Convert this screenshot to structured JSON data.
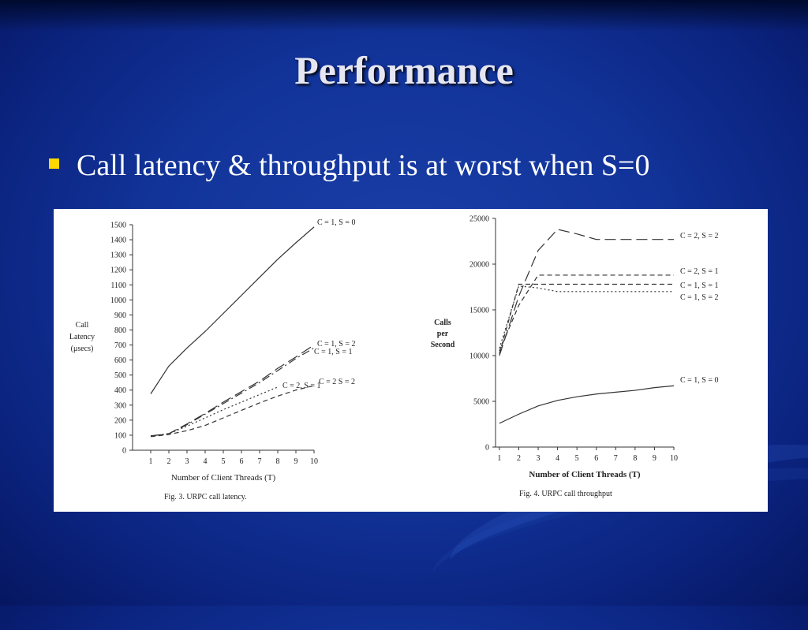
{
  "slide": {
    "title": "Performance",
    "bullet": "Call latency & throughput is at worst when S=0",
    "colors": {
      "background": "#12349a",
      "title": "#e6e6f2",
      "bullet_marker": "#ffd700",
      "text": "#ffffff"
    }
  },
  "chart_data": [
    {
      "type": "line",
      "caption": "Fig. 3.   URPC call latency.",
      "xlabel": "Number of Client Threads (T)",
      "ylabel": [
        "Call",
        "Latency",
        "(μsecs)"
      ],
      "x": [
        1,
        2,
        3,
        4,
        5,
        6,
        7,
        8,
        9,
        10
      ],
      "xticks": [
        "1",
        "2",
        "3",
        "4",
        "5",
        "6",
        "7",
        "8",
        "9",
        "10"
      ],
      "yticks": [
        "0",
        "100",
        "200",
        "300",
        "400",
        "500",
        "600",
        "700",
        "800",
        "900",
        "1000",
        "1100",
        "1200",
        "1300",
        "1400",
        "1500"
      ],
      "xlim": [
        0,
        10
      ],
      "ylim": [
        0,
        1500
      ],
      "grid": false,
      "series": [
        {
          "name": "C = 1, S = 0",
          "style": "solid",
          "x": [
            1,
            2,
            3,
            4,
            5,
            6,
            7,
            8,
            9,
            10
          ],
          "values": [
            375,
            560,
            680,
            790,
            910,
            1030,
            1150,
            1270,
            1380,
            1485
          ]
        },
        {
          "name": "C = 1, S = 2",
          "style": "longdash",
          "x": [
            1,
            2,
            3,
            4,
            5,
            6,
            7,
            8,
            9,
            10
          ],
          "values": [
            95,
            110,
            175,
            245,
            320,
            390,
            460,
            545,
            620,
            700
          ]
        },
        {
          "name": "C = 1, S = 1",
          "style": "dashdot",
          "x": [
            1,
            2,
            3,
            4,
            5,
            6,
            7,
            8,
            9,
            10
          ],
          "values": [
            95,
            110,
            170,
            240,
            310,
            380,
            450,
            530,
            610,
            680
          ]
        },
        {
          "name": "C = 2, S = 1",
          "style": "dotted",
          "x": [
            1,
            2,
            3,
            4,
            5,
            6,
            7,
            8
          ],
          "values": [
            95,
            110,
            160,
            215,
            270,
            320,
            370,
            420
          ]
        },
        {
          "name": "C = 2 S = 2",
          "style": "dashed",
          "x": [
            1,
            2,
            3,
            4,
            5,
            6,
            7,
            8,
            9,
            10
          ],
          "values": [
            90,
            105,
            130,
            165,
            215,
            265,
            315,
            360,
            400,
            430
          ]
        }
      ]
    },
    {
      "type": "line",
      "caption": "Fig. 4.   URPC call throughput",
      "xlabel": "Number of Client Threads (T)",
      "ylabel": [
        "Calls",
        "per",
        "Second"
      ],
      "x": [
        1,
        2,
        3,
        4,
        5,
        6,
        7,
        8,
        9,
        10
      ],
      "xticks": [
        "1",
        "2",
        "3",
        "4",
        "5",
        "6",
        "7",
        "8",
        "9",
        "10"
      ],
      "yticks": [
        "0",
        "5000",
        "10000",
        "15000",
        "20000",
        "25000"
      ],
      "xlim": [
        0.8,
        10
      ],
      "ylim": [
        0,
        25000
      ],
      "grid": false,
      "series": [
        {
          "name": "C = 2, S = 2",
          "style": "longdash",
          "x": [
            1,
            2,
            3,
            4,
            5,
            6,
            7,
            8,
            9,
            10
          ],
          "values": [
            10000,
            16500,
            21500,
            23800,
            23300,
            22700,
            22700,
            22700,
            22700,
            22700
          ]
        },
        {
          "name": "C = 2, S = 1",
          "style": "dashed",
          "x": [
            1,
            2,
            3,
            4,
            5,
            6,
            7,
            8,
            9,
            10
          ],
          "values": [
            10500,
            15500,
            18800,
            18800,
            18800,
            18800,
            18800,
            18800,
            18800,
            18800
          ]
        },
        {
          "name": "C = 1, S = 1",
          "style": "dashed",
          "x": [
            1,
            2,
            3,
            4,
            5,
            6,
            7,
            8,
            9,
            10
          ],
          "values": [
            10200,
            17800,
            17800,
            17800,
            17800,
            17800,
            17800,
            17800,
            17800,
            17800
          ]
        },
        {
          "name": "C = 1, S = 2",
          "style": "dotted",
          "x": [
            1,
            2,
            3,
            4,
            5,
            6,
            7,
            8,
            9,
            10
          ],
          "values": [
            10800,
            17600,
            17400,
            17000,
            17000,
            17000,
            17000,
            17000,
            17000,
            17000
          ]
        },
        {
          "name": "C = 1, S = 0",
          "style": "solid",
          "x": [
            1,
            2,
            3,
            4,
            5,
            6,
            7,
            8,
            9,
            10
          ],
          "values": [
            2600,
            3600,
            4500,
            5100,
            5500,
            5800,
            6000,
            6200,
            6500,
            6700
          ]
        }
      ]
    }
  ]
}
